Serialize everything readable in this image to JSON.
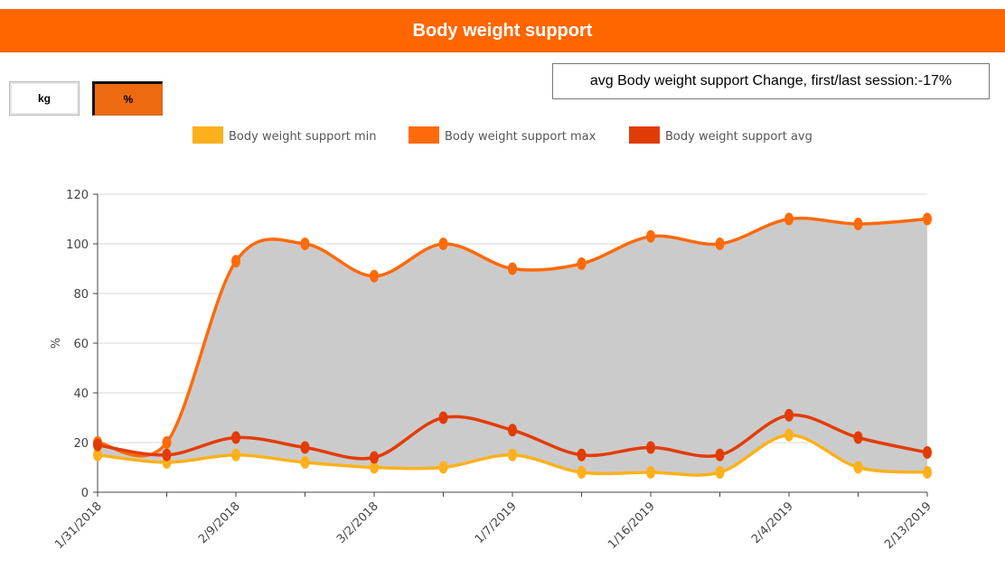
{
  "header": {
    "title": "Body weight support"
  },
  "unit_toggle": {
    "kg_label": "kg",
    "percent_label": "%",
    "selected": "%"
  },
  "summary": {
    "text": "avg Body weight support Change, first/last session:-17%"
  },
  "colors": {
    "min": "#fcb11c",
    "max": "#ff6a0a",
    "avg": "#e23c06",
    "area": "#cccbcb",
    "header": "#ff6600"
  },
  "chart_data": {
    "type": "line",
    "x": [
      "1/31/2018",
      "",
      "2/9/2018",
      "",
      "3/2/2018",
      "",
      "1/7/2019",
      "",
      "1/16/2019",
      "",
      "2/4/2019",
      "",
      "2/13/2019"
    ],
    "ylabel": "%",
    "ylim": [
      0,
      120
    ],
    "yticks": [
      0,
      20,
      40,
      60,
      80,
      100,
      120
    ],
    "legend_position": "top",
    "grid": true,
    "area_between": [
      "Body weight support min",
      "Body weight support max"
    ],
    "series": [
      {
        "name": "Body weight support min",
        "color": "#fcb11c",
        "values": [
          15,
          12,
          15,
          12,
          10,
          10,
          15,
          8,
          8,
          8,
          23,
          10,
          8
        ]
      },
      {
        "name": "Body weight support max",
        "color": "#ff6a0a",
        "values": [
          20,
          20,
          93,
          100,
          87,
          100,
          90,
          92,
          103,
          100,
          110,
          108,
          110
        ]
      },
      {
        "name": "Body weight support avg",
        "color": "#e23c06",
        "values": [
          19,
          15,
          22,
          18,
          14,
          30,
          25,
          15,
          18,
          15,
          31,
          22,
          16
        ]
      }
    ]
  }
}
